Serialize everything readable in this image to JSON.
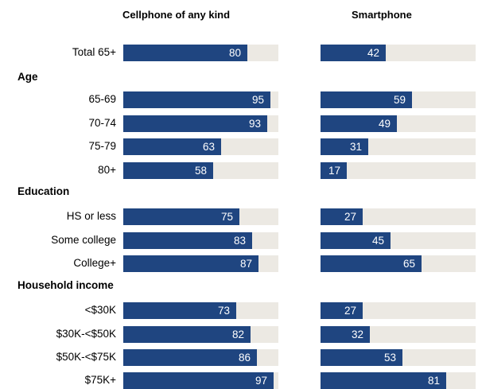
{
  "chart_data": {
    "type": "bar",
    "orientation": "horizontal",
    "columns": [
      "Cellphone of any kind",
      "Smartphone"
    ],
    "rows": [
      {
        "kind": "category",
        "label": "Total 65+",
        "values": [
          80,
          42
        ]
      },
      {
        "kind": "section",
        "label": "Age"
      },
      {
        "kind": "category",
        "label": "65-69",
        "values": [
          95,
          59
        ]
      },
      {
        "kind": "category",
        "label": "70-74",
        "values": [
          93,
          49
        ]
      },
      {
        "kind": "category",
        "label": "75-79",
        "values": [
          63,
          31
        ]
      },
      {
        "kind": "category",
        "label": "80+",
        "values": [
          58,
          17
        ]
      },
      {
        "kind": "section",
        "label": "Education"
      },
      {
        "kind": "category",
        "label": "HS or less",
        "values": [
          75,
          27
        ]
      },
      {
        "kind": "category",
        "label": "Some college",
        "values": [
          83,
          45
        ]
      },
      {
        "kind": "category",
        "label": "College+",
        "values": [
          87,
          65
        ]
      },
      {
        "kind": "section",
        "label": "Household income"
      },
      {
        "kind": "category",
        "label": "<$30K",
        "values": [
          73,
          27
        ]
      },
      {
        "kind": "category",
        "label": "$30K-<$50K",
        "values": [
          82,
          32
        ]
      },
      {
        "kind": "category",
        "label": "$50K-<$75K",
        "values": [
          86,
          53
        ]
      },
      {
        "kind": "category",
        "label": "$75K+",
        "values": [
          97,
          81
        ]
      }
    ],
    "xlim": [
      0,
      100
    ],
    "colors": {
      "bar": "#1f4580",
      "track": "#ece9e3",
      "value_text": "#ffffff"
    }
  }
}
